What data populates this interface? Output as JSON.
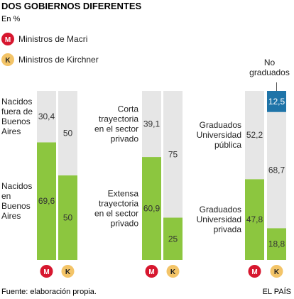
{
  "title": "DOS GOBIERNOS DIFERENTES",
  "subtitle": "En %",
  "legend": [
    {
      "code": "M",
      "label": "Ministros de Macri",
      "color": "#d7172f",
      "text_color": "#ffffff"
    },
    {
      "code": "K",
      "label": "Ministros de Kirchner",
      "color": "#f3c468",
      "text_color": "#222222"
    }
  ],
  "footer": {
    "source": "Fuente: elaboración propia.",
    "credit": "EL PAÍS"
  },
  "colors": {
    "green": "#8cc63f",
    "gray": "#e6e6e6",
    "blue": "#1f74a8"
  },
  "chart_data": [
    {
      "type": "bar",
      "stacked": true,
      "ylim": [
        0,
        100
      ],
      "categories": [
        "M",
        "K"
      ],
      "series": [
        {
          "name": "Nacidos en Buenos Aires",
          "values": [
            69.6,
            50
          ],
          "color": "#8cc63f",
          "labels": [
            "69,6",
            "50"
          ]
        },
        {
          "name": "Nacidos fuera de Buenos Aires",
          "values": [
            30.4,
            50
          ],
          "color": "#e6e6e6",
          "labels": [
            "30,4",
            "50"
          ]
        }
      ]
    },
    {
      "type": "bar",
      "stacked": true,
      "ylim": [
        0,
        100
      ],
      "categories": [
        "M",
        "K"
      ],
      "series": [
        {
          "name": "Extensa trayectoria en el sector privado",
          "values": [
            60.9,
            25
          ],
          "color": "#8cc63f",
          "labels": [
            "60,9",
            "25"
          ]
        },
        {
          "name": "Corta trayectoria en el sector privado",
          "values": [
            39.1,
            75
          ],
          "color": "#e6e6e6",
          "labels": [
            "39,1",
            "75"
          ]
        }
      ]
    },
    {
      "type": "bar",
      "stacked": true,
      "ylim": [
        0,
        100
      ],
      "categories": [
        "M",
        "K"
      ],
      "series": [
        {
          "name": "Graduados Universidad privada",
          "values": [
            47.8,
            18.8
          ],
          "color": "#8cc63f",
          "labels": [
            "47,8",
            "18,8"
          ]
        },
        {
          "name": "Graduados Universidad pública",
          "values": [
            52.2,
            68.7
          ],
          "color": "#e6e6e6",
          "labels": [
            "52,2",
            "68,7"
          ]
        },
        {
          "name": "No graduados",
          "values": [
            0,
            12.5
          ],
          "color": "#1f74a8",
          "labels": [
            "",
            "12,5"
          ]
        }
      ]
    }
  ]
}
